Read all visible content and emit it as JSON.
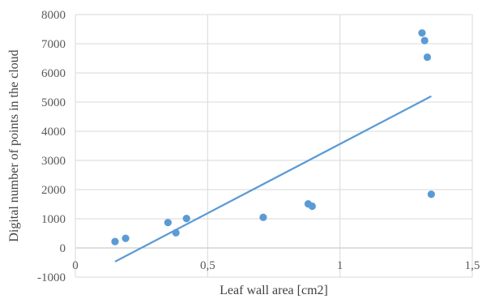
{
  "chart_data": {
    "type": "scatter",
    "title": "",
    "xlabel": "Leaf wall area [cm2]",
    "ylabel": "Digital number of points in the cloud",
    "xlim": [
      0,
      1.5
    ],
    "ylim": [
      -1000,
      8000
    ],
    "x_ticks": [
      0,
      0.5,
      1,
      1.5
    ],
    "x_tick_labels": [
      "0",
      "0,5",
      "1",
      "1,5"
    ],
    "y_ticks": [
      -1000,
      0,
      1000,
      2000,
      3000,
      4000,
      5000,
      6000,
      7000,
      8000
    ],
    "y_tick_labels": [
      "-1000",
      "0",
      "1000",
      "2000",
      "3000",
      "4000",
      "5000",
      "6000",
      "7000",
      "8000"
    ],
    "grid": true,
    "legend": "none",
    "series": [
      {
        "points": [
          {
            "x": 0.15,
            "y": 220
          },
          {
            "x": 0.19,
            "y": 330
          },
          {
            "x": 0.35,
            "y": 870
          },
          {
            "x": 0.38,
            "y": 520
          },
          {
            "x": 0.42,
            "y": 1010
          },
          {
            "x": 0.71,
            "y": 1050
          },
          {
            "x": 0.88,
            "y": 1510
          },
          {
            "x": 0.895,
            "y": 1430
          },
          {
            "x": 1.31,
            "y": 7370
          },
          {
            "x": 1.32,
            "y": 7110
          },
          {
            "x": 1.33,
            "y": 6540
          },
          {
            "x": 1.345,
            "y": 1840
          }
        ]
      }
    ],
    "trendline": {
      "type": "linear",
      "x": [
        0.15,
        1.345
      ],
      "y": [
        -470,
        5200
      ]
    },
    "colors": {
      "points": "#5b9bd5",
      "trendline": "#5b9bd5",
      "grid": "#d9d9d9",
      "text": "#595959"
    }
  }
}
